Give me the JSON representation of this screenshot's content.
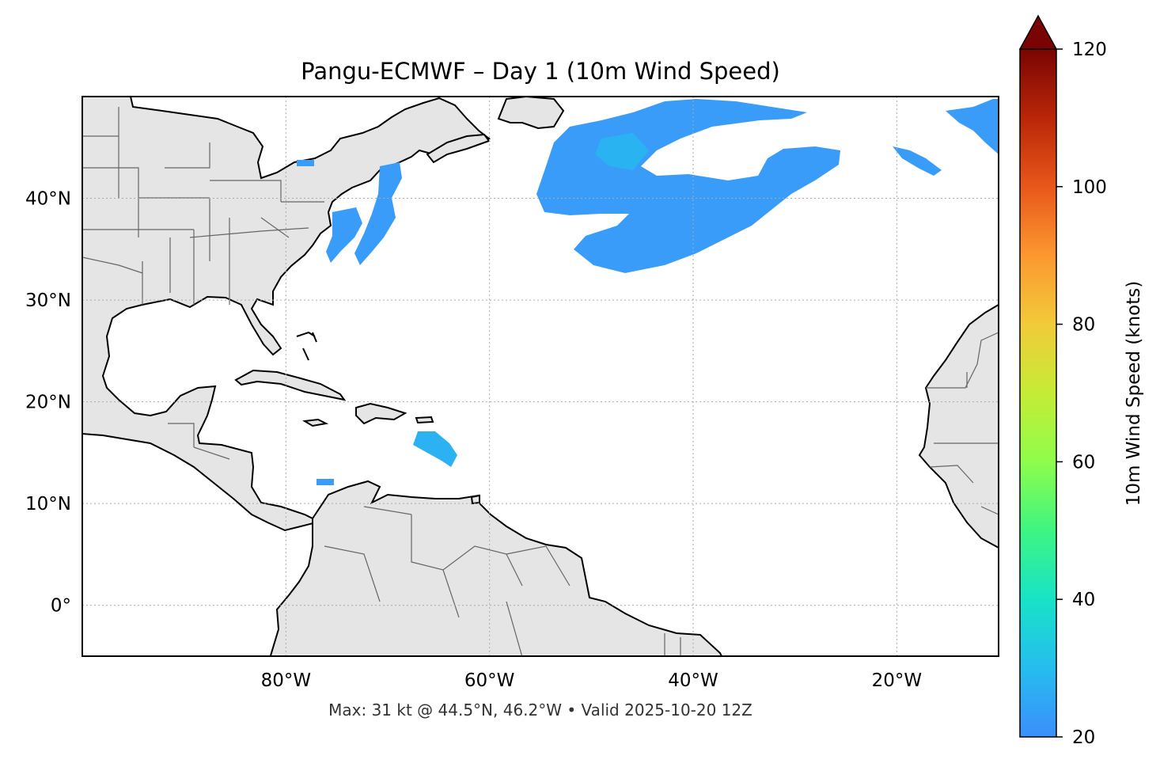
{
  "figure": {
    "title": "Pangu-ECMWF – Day 1 (10m Wind Speed)",
    "footer": "Max: 31 kt @ 44.5°N, 46.2°W • Valid 2025-10-20 12Z"
  },
  "map": {
    "extent": {
      "lon_min": -100,
      "lon_max": -10,
      "lat_min": -5,
      "lat_max": 50
    },
    "lat_ticks": [
      {
        "value": 40,
        "label": "40°N"
      },
      {
        "value": 30,
        "label": "30°N"
      },
      {
        "value": 20,
        "label": "20°N"
      },
      {
        "value": 10,
        "label": "10°N"
      },
      {
        "value": 0,
        "label": "0°"
      }
    ],
    "lon_ticks": [
      {
        "value": -80,
        "label": "80°W"
      },
      {
        "value": -60,
        "label": "60°W"
      },
      {
        "value": -40,
        "label": "40°W"
      },
      {
        "value": -20,
        "label": "20°W"
      }
    ],
    "gridlines": true,
    "land_color": "#e5e5e5",
    "coast_color": "#000000",
    "border_color": "#666666"
  },
  "colorbar": {
    "label": "10m Wind Speed (knots)",
    "range": [
      20,
      120
    ],
    "ticks": [
      20,
      40,
      60,
      80,
      100,
      120
    ],
    "extend": "max",
    "colormap": "turbo"
  },
  "wind_features": [
    {
      "region": "NW Atlantic jet",
      "speed_kt": 24
    },
    {
      "region": "Mid-Atlantic band",
      "speed_kt": 31
    },
    {
      "region": "Eastern Atlantic patch",
      "speed_kt": 22
    },
    {
      "region": "Coastal US patch",
      "speed_kt": 23
    },
    {
      "region": "Caribbean patch",
      "speed_kt": 26
    }
  ]
}
